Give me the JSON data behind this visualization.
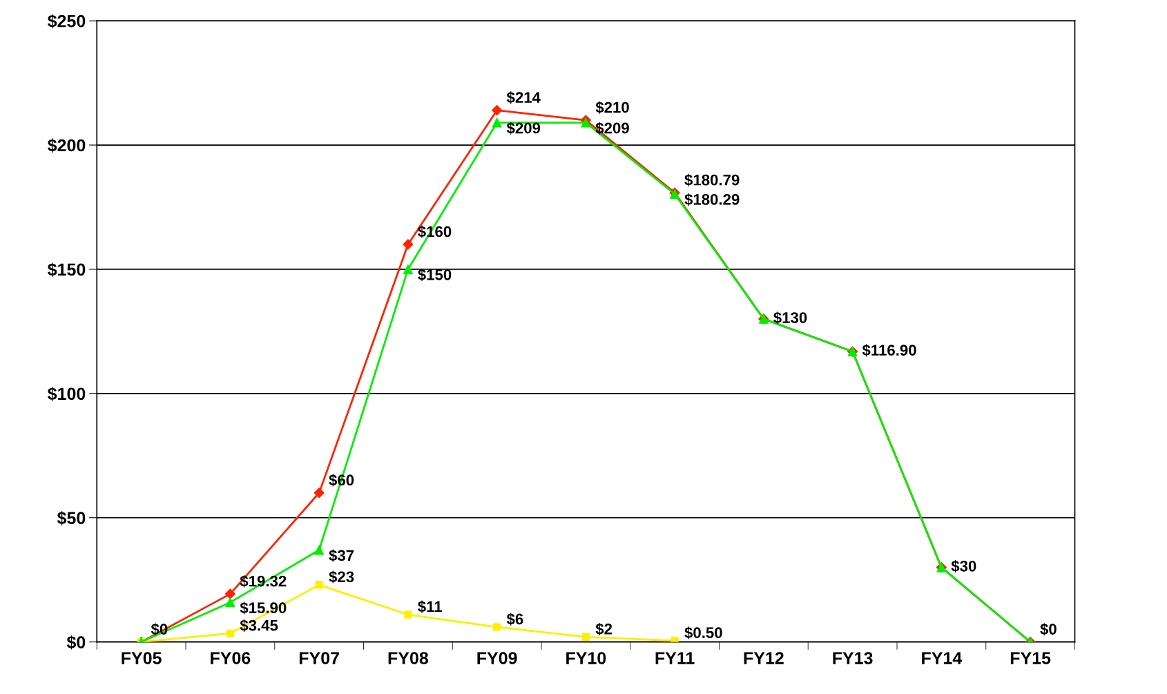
{
  "chart_data": {
    "type": "line",
    "categories": [
      "FY05",
      "FY06",
      "FY07",
      "FY08",
      "FY09",
      "FY10",
      "FY11",
      "FY12",
      "FY13",
      "FY14",
      "FY15"
    ],
    "series": [
      {
        "color": "#ff2200",
        "marker": "diamond",
        "values": [
          0,
          19.32,
          60,
          160,
          214,
          210,
          180.79,
          130,
          116.9,
          30,
          0
        ],
        "value_labels": [
          null,
          "$19.32",
          "$60",
          "$160",
          "$214",
          "$210",
          "$180.79",
          null,
          null,
          null,
          null
        ]
      },
      {
        "color": "#ffee00",
        "marker": "square",
        "values": [
          0,
          3.45,
          23,
          11,
          6,
          2,
          0.5,
          null,
          null,
          null,
          null
        ],
        "value_labels": [
          null,
          "$3.45",
          "$23",
          "$11",
          "$6",
          "$2",
          "$0.50",
          null,
          null,
          null,
          null
        ]
      },
      {
        "color": "#00ee00",
        "marker": "triangle",
        "values": [
          0,
          15.9,
          37,
          150,
          209,
          209,
          180.29,
          130,
          116.9,
          30,
          0
        ],
        "value_labels": [
          "$0",
          "$15.90",
          "$37",
          "$150",
          "$209",
          "$209",
          "$180.29",
          "$130",
          "$116.90",
          "$30",
          "$0"
        ]
      }
    ],
    "ylim": [
      0,
      250
    ],
    "yticks": [
      {
        "value": 0,
        "label": "$0"
      },
      {
        "value": 50,
        "label": "$50"
      },
      {
        "value": 100,
        "label": "$100"
      },
      {
        "value": 150,
        "label": "$150"
      },
      {
        "value": 200,
        "label": "$200"
      },
      {
        "value": 250,
        "label": "$250"
      }
    ],
    "grid": "y",
    "legend": false,
    "line_style": "solid"
  }
}
